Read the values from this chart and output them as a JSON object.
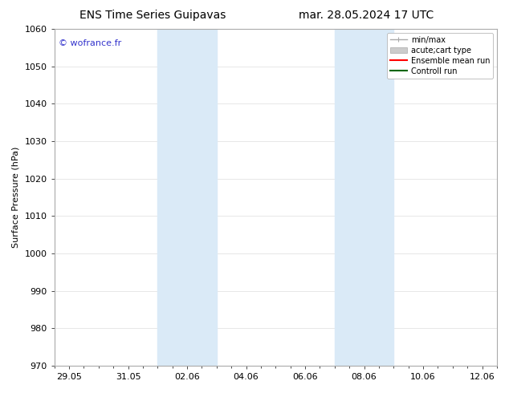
{
  "title_left": "ENS Time Series Guipavas",
  "title_right": "mar. 28.05.2024 17 UTC",
  "ylabel": "Surface Pressure (hPa)",
  "ylim": [
    970,
    1060
  ],
  "yticks": [
    970,
    980,
    990,
    1000,
    1010,
    1020,
    1030,
    1040,
    1050,
    1060
  ],
  "xtick_labels": [
    "29.05",
    "31.05",
    "02.06",
    "04.06",
    "06.06",
    "08.06",
    "10.06",
    "12.06"
  ],
  "xtick_positions": [
    0,
    2,
    4,
    6,
    8,
    10,
    12,
    14
  ],
  "shaded_bands": [
    {
      "x_start": 3.0,
      "x_end": 5.0
    },
    {
      "x_start": 9.0,
      "x_end": 11.0
    }
  ],
  "shaded_color": "#daeaf7",
  "background_color": "#ffffff",
  "plot_bg_color": "#ffffff",
  "watermark_text": "© wofrance.fr",
  "watermark_color": "#3333cc",
  "legend_items": [
    {
      "label": "min/max",
      "color": "#aaaaaa",
      "lw": 1.0
    },
    {
      "label": "acute;cart type",
      "color": "#cccccc",
      "lw": 6
    },
    {
      "label": "Ensemble mean run",
      "color": "#ff0000",
      "lw": 1.5
    },
    {
      "label": "Controll run",
      "color": "#006600",
      "lw": 1.5
    }
  ],
  "title_fontsize": 10,
  "label_fontsize": 8,
  "tick_fontsize": 8,
  "watermark_fontsize": 8,
  "grid_color": "#dddddd",
  "spine_color": "#aaaaaa",
  "xlim": [
    -0.5,
    14.5
  ],
  "legend_fontsize": 7,
  "fig_width": 6.34,
  "fig_height": 4.9,
  "dpi": 100
}
